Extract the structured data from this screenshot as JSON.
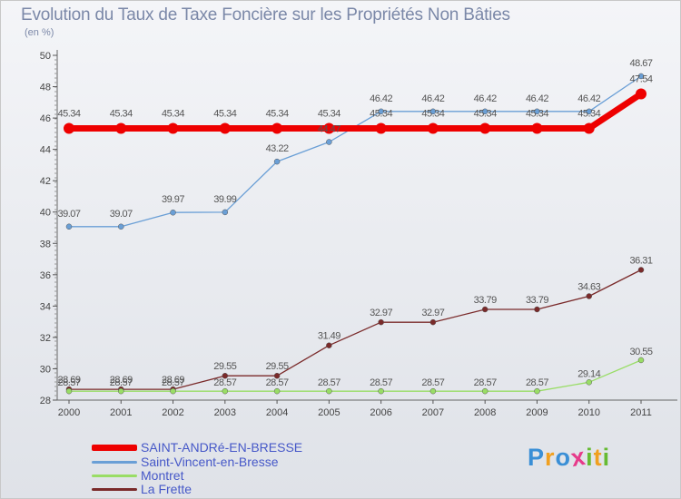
{
  "header": {
    "title": "Evolution du Taux de Taxe Foncière sur les Propriétés Non Bâties",
    "unit": "(en %)"
  },
  "chart_data": {
    "type": "line",
    "title": "Evolution du Taux de Taxe Foncière sur les Propriétés Non Bâties",
    "ylabel": "(en %)",
    "xlabel": "",
    "ylim": [
      28,
      50
    ],
    "yticks": [
      28,
      30,
      32,
      34,
      36,
      38,
      40,
      42,
      44,
      46,
      48,
      50
    ],
    "categories": [
      "2000",
      "2001",
      "2002",
      "2003",
      "2004",
      "2005",
      "2006",
      "2007",
      "2008",
      "2009",
      "2010",
      "2011"
    ],
    "grid": false,
    "legend_position": "bottom-left",
    "series": [
      {
        "name": "SAINT-ANDRé-EN-BRESSE",
        "color": "#ee0000",
        "values": [
          45.34,
          45.34,
          45.34,
          45.34,
          45.34,
          45.34,
          45.34,
          45.34,
          45.34,
          45.34,
          45.34,
          47.54
        ],
        "labels": [
          "45.34",
          "45.34",
          "45.34",
          "45.34",
          "45.34",
          "45.34",
          "45.34",
          "45.34",
          "45.34",
          "45.34",
          "45.34",
          "47.54"
        ]
      },
      {
        "name": "Saint-Vincent-en-Bresse",
        "color": "#6a9fd6",
        "values": [
          39.07,
          39.07,
          39.97,
          39.99,
          43.22,
          44.47,
          46.42,
          46.42,
          46.42,
          46.42,
          46.42,
          48.67
        ],
        "labels": [
          "39.07",
          "39.07",
          "39.97",
          "39.99",
          "43.22",
          "44.47",
          "46.42",
          "46.42",
          "46.42",
          "46.42",
          "46.42",
          "48.67"
        ]
      },
      {
        "name": "Montret",
        "color": "#99dd66",
        "values": [
          28.57,
          28.57,
          28.57,
          28.57,
          28.57,
          28.57,
          28.57,
          28.57,
          28.57,
          28.57,
          29.14,
          30.55
        ],
        "labels": [
          "28.57",
          "28.57",
          "28.57",
          "28.57",
          "28.57",
          "28.57",
          "28.57",
          "28.57",
          "28.57",
          "28.57",
          "29.14",
          "30.55"
        ]
      },
      {
        "name": "La Frette",
        "color": "#7a2a2a",
        "values": [
          28.69,
          28.69,
          28.69,
          29.55,
          29.55,
          31.49,
          32.97,
          32.97,
          33.79,
          33.79,
          34.63,
          36.31
        ],
        "labels": [
          "28.69",
          "28.69",
          "28.69",
          "29.55",
          "29.55",
          "31.49",
          "32.97",
          "32.97",
          "33.79",
          "33.79",
          "34.63",
          "36.31"
        ]
      }
    ]
  },
  "logo": {
    "letters": [
      "P",
      "r",
      "o",
      "x",
      "i",
      "t",
      "i"
    ],
    "colors": [
      "#3a8fd6",
      "#f0a020",
      "#3a8fd6",
      "#e63a8a",
      "#66bb33",
      "#f0a020",
      "#66bb33"
    ]
  }
}
